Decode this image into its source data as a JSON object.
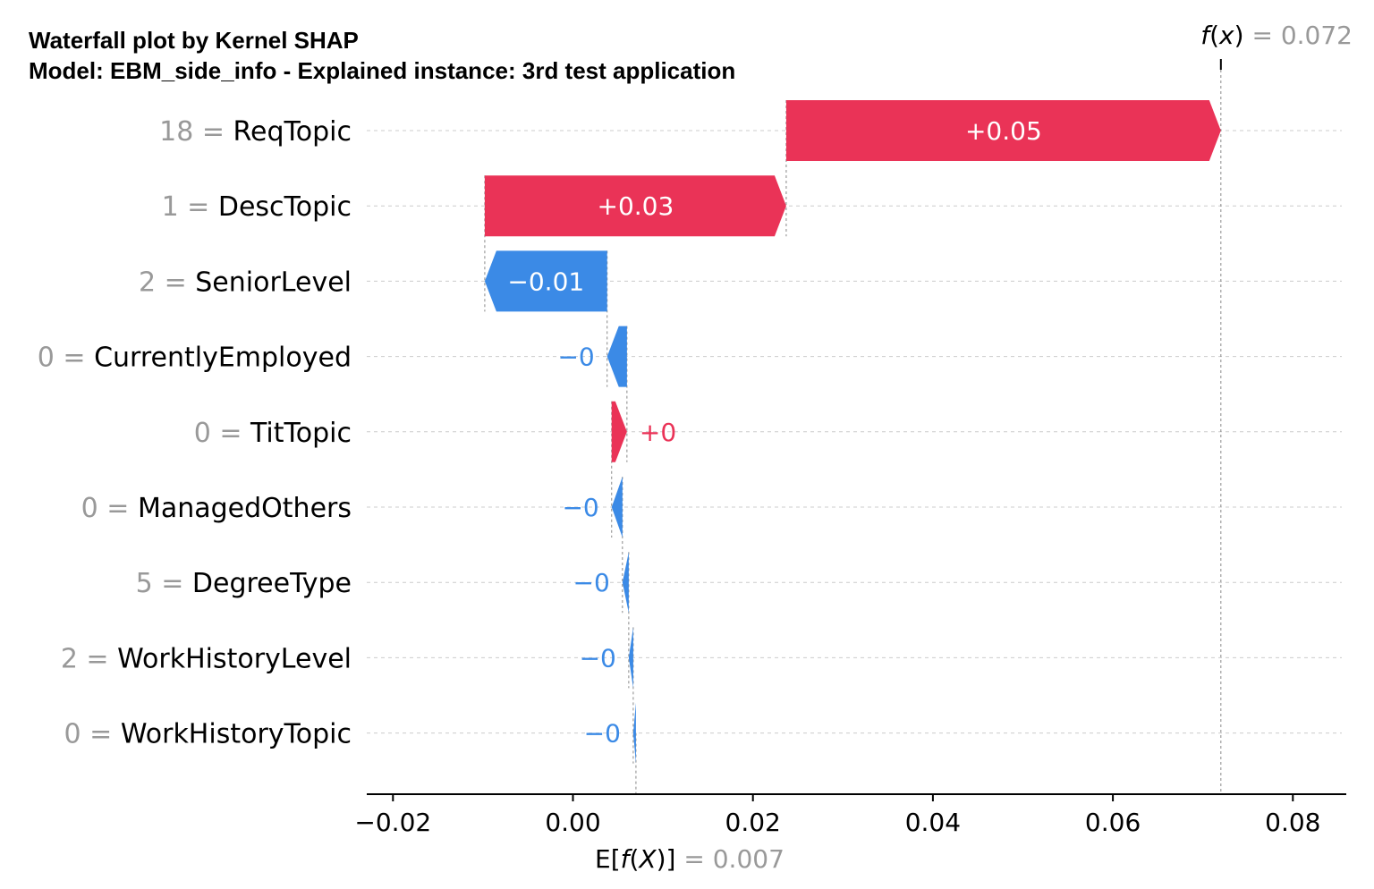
{
  "chart_data": {
    "type": "waterfall",
    "title": "Waterfall plot by Kernel SHAP",
    "subtitle": "Model: EBM_side_info - Explained instance: 3rd test application",
    "colors": {
      "positive": "#ea3357",
      "negative": "#3b8ae6",
      "grid": "#cccccc",
      "muted": "#999999"
    },
    "base_value": 0.007,
    "fx_value": 0.072,
    "fx_label": {
      "func": "f",
      "arg": "x",
      "eq": " = ",
      "value_text": "0.072"
    },
    "ex_label": {
      "prefix": "E[",
      "func": "f",
      "arg": "X",
      "suffix": ")]",
      "eq": " = ",
      "value_text": "0.007"
    },
    "xlim": [
      -0.023,
      0.085
    ],
    "xticks": [
      {
        "value": -0.02,
        "label": "−0.02"
      },
      {
        "value": 0.0,
        "label": "0.00"
      },
      {
        "value": 0.02,
        "label": "0.02"
      },
      {
        "value": 0.04,
        "label": "0.04"
      },
      {
        "value": 0.06,
        "label": "0.06"
      },
      {
        "value": 0.08,
        "label": "0.08"
      }
    ],
    "features": [
      {
        "value_text": "18",
        "name": "ReqTopic",
        "shap": 0.0478,
        "label": "+0.05"
      },
      {
        "value_text": "1",
        "name": "DescTopic",
        "shap": 0.0335,
        "label": "+0.03"
      },
      {
        "value_text": "2",
        "name": "SeniorLevel",
        "shap": -0.0136,
        "label": "−0.01"
      },
      {
        "value_text": "0",
        "name": "CurrentlyEmployed",
        "shap": -0.0022,
        "label": "−0"
      },
      {
        "value_text": "0",
        "name": "TitTopic",
        "shap": 0.0017,
        "label": "+0"
      },
      {
        "value_text": "0",
        "name": "ManagedOthers",
        "shap": -0.0012,
        "label": "−0"
      },
      {
        "value_text": "5",
        "name": "DegreeType",
        "shap": -0.0007,
        "label": "−0"
      },
      {
        "value_text": "2",
        "name": "WorkHistoryLevel",
        "shap": -0.0005,
        "label": "−0"
      },
      {
        "value_text": "0",
        "name": "WorkHistoryTopic",
        "shap": -0.0003,
        "label": "−0"
      }
    ]
  }
}
